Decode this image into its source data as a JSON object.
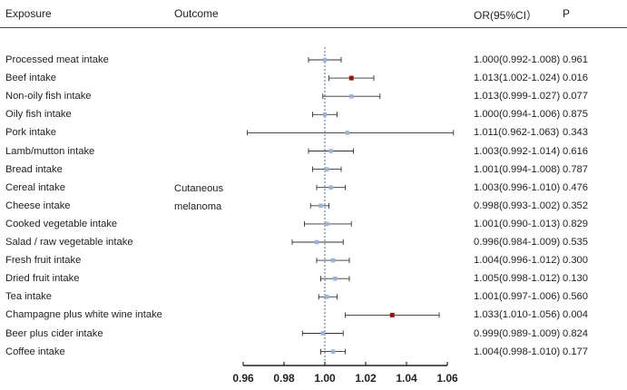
{
  "headers": {
    "exposure": "Exposure",
    "outcome": "Outcome",
    "or": "OR(95%CI）",
    "p": "P"
  },
  "outcome_label": [
    "Cutaneous",
    "melanoma"
  ],
  "colors": {
    "point_nonsig": "#9db3d1",
    "point_sig": "#8b1a1a",
    "whisker": "#333333",
    "ref_line": "#4a6fa5"
  },
  "chart_data": {
    "type": "forest",
    "reference": 1.0,
    "xlim": [
      0.96,
      1.06
    ],
    "xticks": [
      0.96,
      0.98,
      1.0,
      1.02,
      1.04,
      1.06
    ],
    "xtick_labels": [
      "0.96",
      "0.98",
      "1.00",
      "1.02",
      "1.04",
      "1.06"
    ],
    "rows": [
      {
        "exposure": "Processed meat intake",
        "or": 1.0,
        "lo": 0.992,
        "hi": 1.008,
        "or_text": "1.000(0.992-1.008)",
        "p": "0.961",
        "sig": false
      },
      {
        "exposure": "Beef intake",
        "or": 1.013,
        "lo": 1.002,
        "hi": 1.024,
        "or_text": "1.013(1.002-1.024)",
        "p": "0.016",
        "sig": true
      },
      {
        "exposure": "Non-oily fish intake",
        "or": 1.013,
        "lo": 0.999,
        "hi": 1.027,
        "or_text": "1.013(0.999-1.027)",
        "p": "0.077",
        "sig": false
      },
      {
        "exposure": "Oily fish intake",
        "or": 1.0,
        "lo": 0.994,
        "hi": 1.006,
        "or_text": "1.000(0.994-1.006)",
        "p": "0.875",
        "sig": false
      },
      {
        "exposure": "Pork intake",
        "or": 1.011,
        "lo": 0.962,
        "hi": 1.063,
        "or_text": "1.011(0.962-1.063)",
        "p": "0.343",
        "sig": false
      },
      {
        "exposure": "Lamb/mutton intake",
        "or": 1.003,
        "lo": 0.992,
        "hi": 1.014,
        "or_text": "1.003(0.992-1.014)",
        "p": "0.616",
        "sig": false
      },
      {
        "exposure": "Bread intake",
        "or": 1.001,
        "lo": 0.994,
        "hi": 1.008,
        "or_text": "1.001(0.994-1.008)",
        "p": "0.787",
        "sig": false
      },
      {
        "exposure": "Cereal intake",
        "or": 1.003,
        "lo": 0.996,
        "hi": 1.01,
        "or_text": "1.003(0.996-1.010)",
        "p": "0.476",
        "sig": false
      },
      {
        "exposure": "Cheese intake",
        "or": 0.998,
        "lo": 0.993,
        "hi": 1.002,
        "or_text": "0.998(0.993-1.002)",
        "p": "0.352",
        "sig": false
      },
      {
        "exposure": "Cooked vegetable intake",
        "or": 1.001,
        "lo": 0.99,
        "hi": 1.013,
        "or_text": "1.001(0.990-1.013)",
        "p": "0.829",
        "sig": false
      },
      {
        "exposure": "Salad / raw vegetable intake",
        "or": 0.996,
        "lo": 0.984,
        "hi": 1.009,
        "or_text": "0.996(0.984-1.009)",
        "p": "0.535",
        "sig": false
      },
      {
        "exposure": "Fresh fruit intake",
        "or": 1.004,
        "lo": 0.996,
        "hi": 1.012,
        "or_text": "1.004(0.996-1.012)",
        "p": "0.300",
        "sig": false
      },
      {
        "exposure": "Dried fruit intake",
        "or": 1.005,
        "lo": 0.998,
        "hi": 1.012,
        "or_text": "1.005(0.998-1.012)",
        "p": "0.130",
        "sig": false
      },
      {
        "exposure": "Tea intake",
        "or": 1.001,
        "lo": 0.997,
        "hi": 1.006,
        "or_text": "1.001(0.997-1.006)",
        "p": "0.560",
        "sig": false
      },
      {
        "exposure": "Champagne plus white wine intake",
        "or": 1.033,
        "lo": 1.01,
        "hi": 1.056,
        "or_text": "1.033(1.010-1.056)",
        "p": "0.004",
        "sig": true
      },
      {
        "exposure": "Beer plus cider intake",
        "or": 0.999,
        "lo": 0.989,
        "hi": 1.009,
        "or_text": "0.999(0.989-1.009)",
        "p": "0.824",
        "sig": false
      },
      {
        "exposure": "Coffee intake",
        "or": 1.004,
        "lo": 0.998,
        "hi": 1.01,
        "or_text": "1.004(0.998-1.010)",
        "p": "0.177",
        "sig": false
      }
    ]
  }
}
